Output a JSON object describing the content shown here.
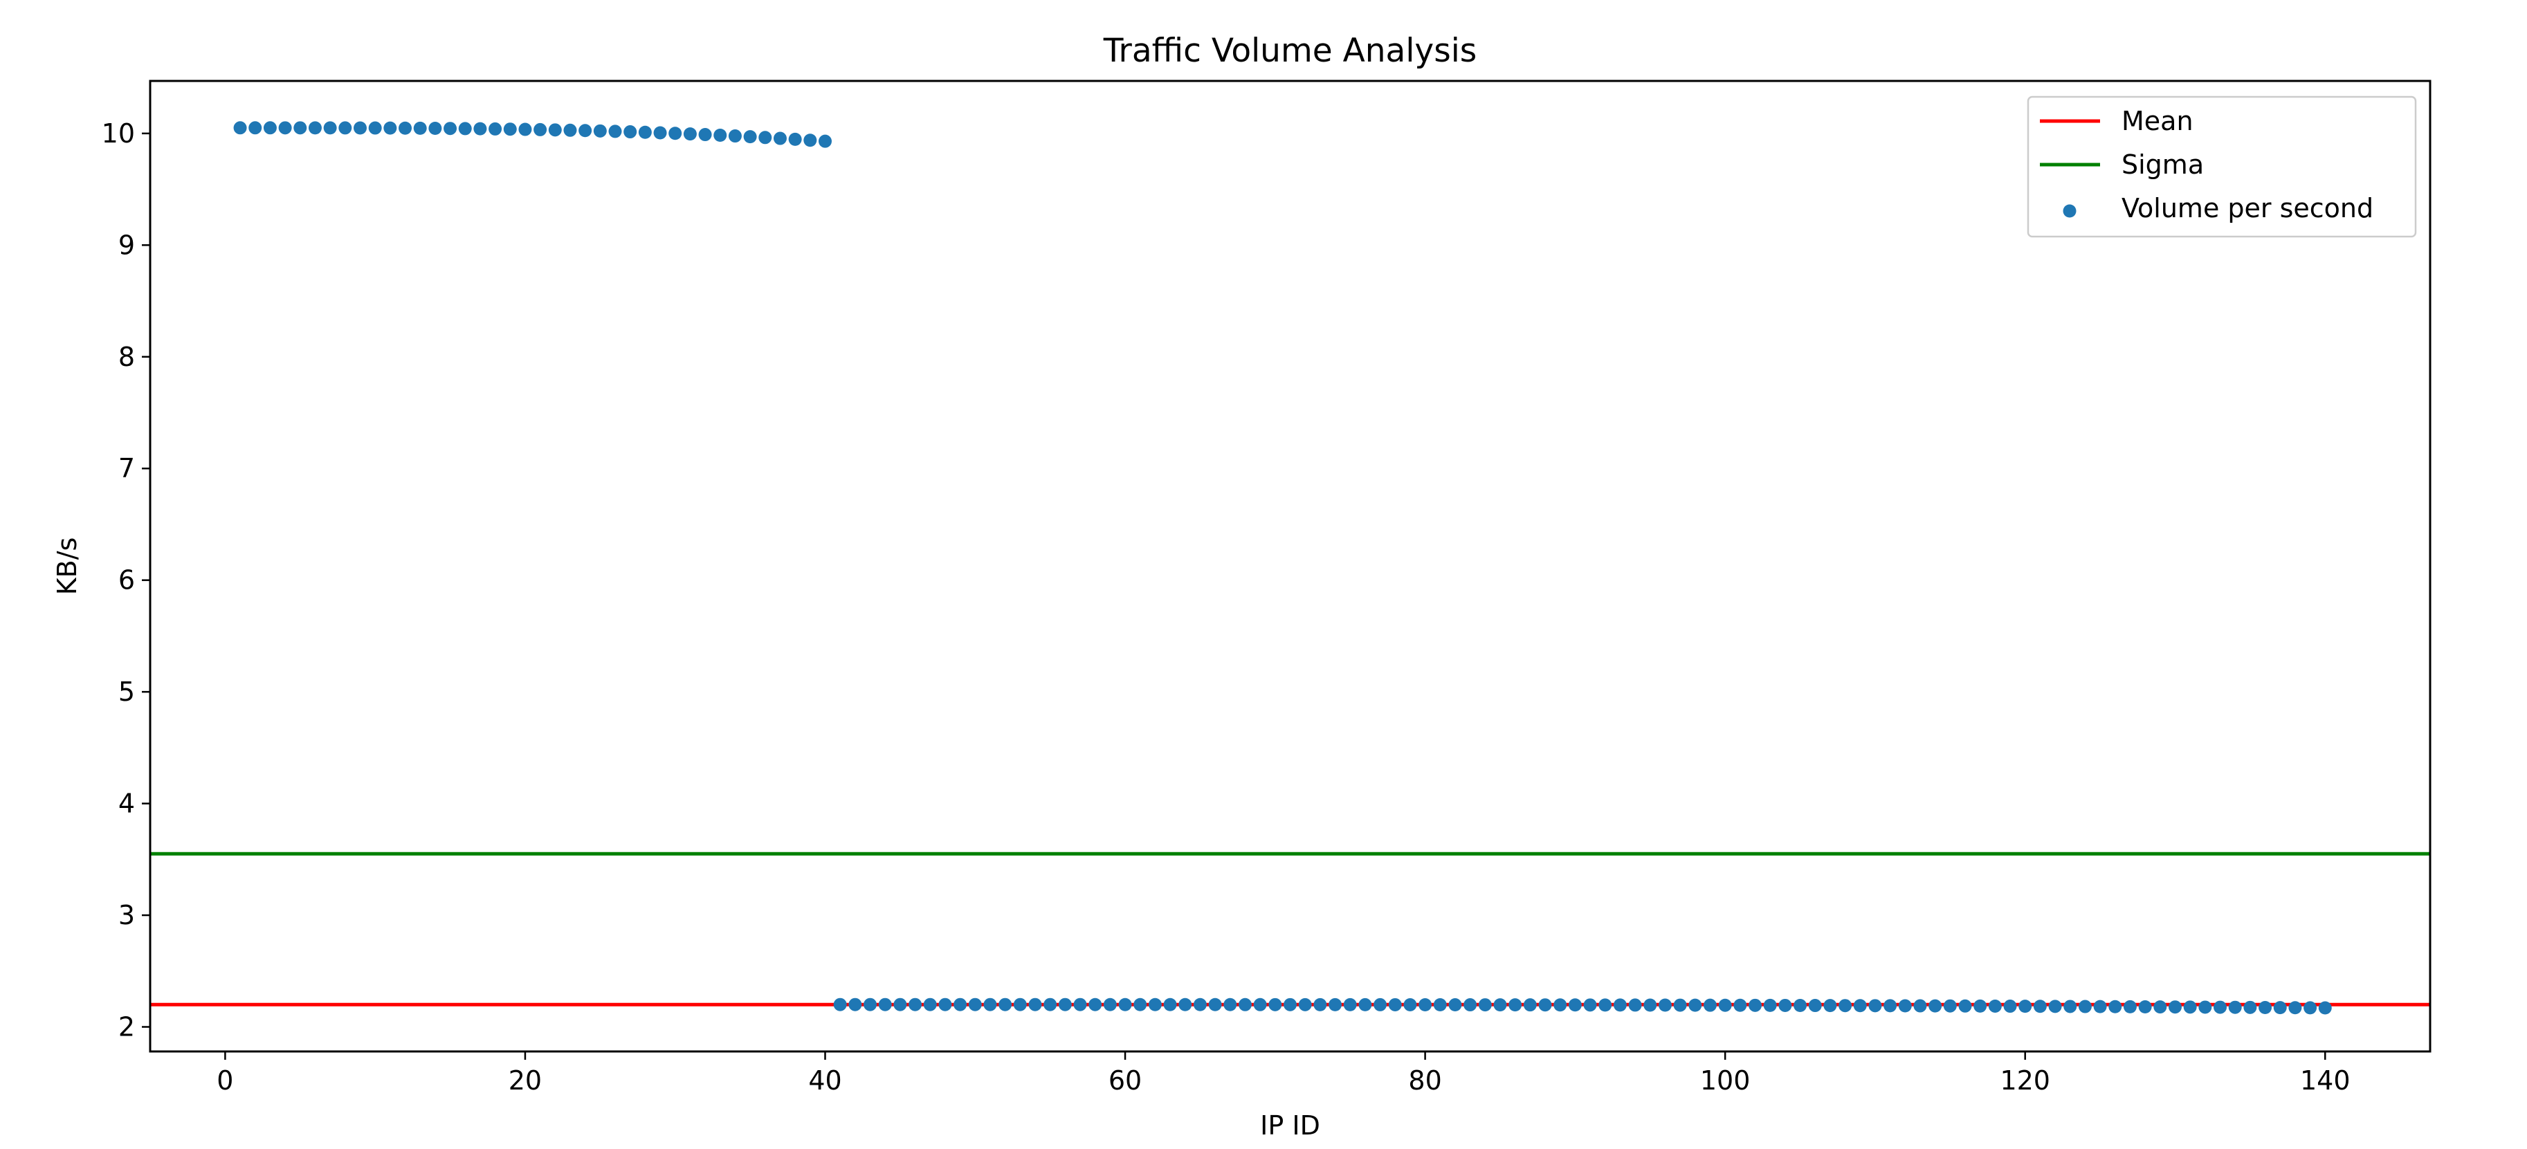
{
  "chart_data": {
    "type": "scatter",
    "title": "Traffic Volume Analysis",
    "xlabel": "IP ID",
    "ylabel": "KB/s",
    "xlim": [
      -5,
      147
    ],
    "ylim": [
      1.78,
      10.47
    ],
    "x_ticks": [
      0,
      20,
      40,
      60,
      80,
      100,
      120,
      140
    ],
    "y_ticks": [
      2,
      3,
      4,
      5,
      6,
      7,
      8,
      9,
      10
    ],
    "grid": false,
    "legend_position": "top-right",
    "series": [
      {
        "name": "Mean",
        "kind": "hline",
        "y": 2.2,
        "color": "#ff0000"
      },
      {
        "name": "Sigma",
        "kind": "hline",
        "y": 3.55,
        "color": "#008000"
      },
      {
        "name": "Volume per second",
        "kind": "scatter",
        "color": "#1f77b4",
        "segments": [
          {
            "x_start": 1,
            "x_end": 40,
            "y_start": 10.05,
            "y_end": 9.93
          },
          {
            "x_start": 41,
            "x_end": 140,
            "y_start": 2.2,
            "y_end": 2.17
          }
        ]
      }
    ]
  }
}
